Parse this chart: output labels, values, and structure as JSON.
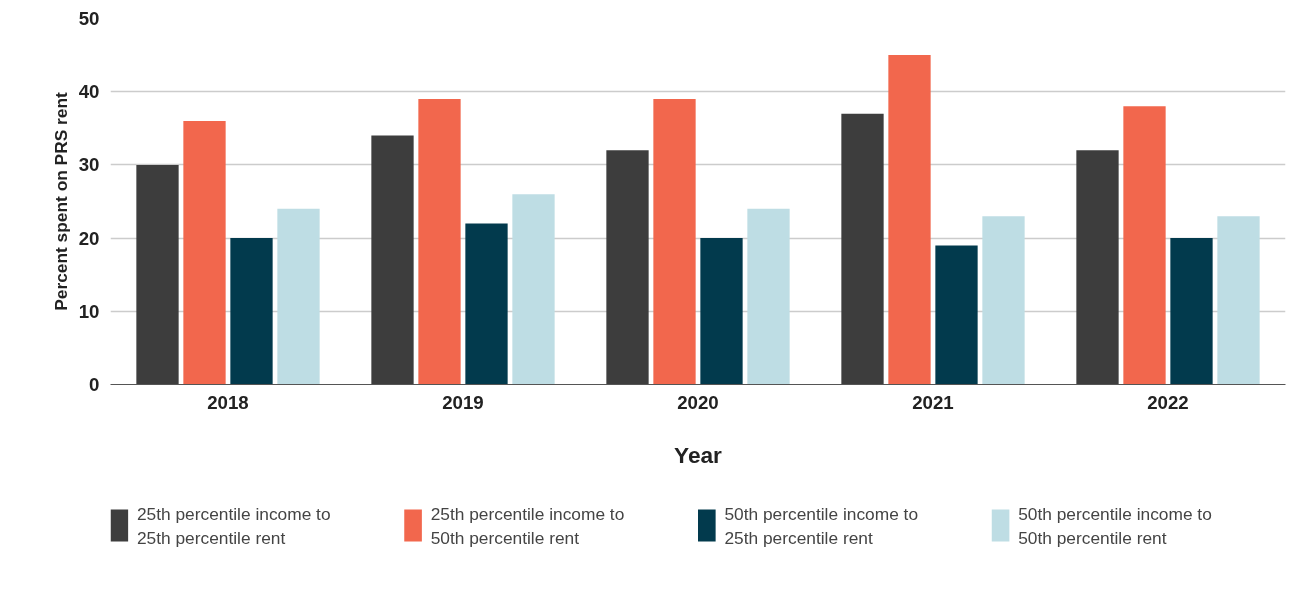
{
  "chart_data": {
    "type": "bar",
    "xlabel": "Year",
    "ylabel": "Percent spent on PRS rent",
    "categories": [
      "2018",
      "2019",
      "2020",
      "2021",
      "2022"
    ],
    "series": [
      {
        "name": "25th percentile income to 25th percentile rent",
        "color": "#3d3d3d",
        "values": [
          30,
          34,
          32,
          37,
          32
        ]
      },
      {
        "name": "25th percentile income to 50th percentile rent",
        "color": "#f2674d",
        "values": [
          36,
          39,
          39,
          45,
          38
        ]
      },
      {
        "name": "50th percentile income to 25th percentile rent",
        "color": "#023a4d",
        "values": [
          20,
          22,
          20,
          19,
          20
        ]
      },
      {
        "name": "50th percentile income to 50th percentile rent",
        "color": "#bedde4",
        "values": [
          24,
          26,
          24,
          23,
          23
        ]
      }
    ],
    "ylim": [
      0,
      50
    ],
    "yticks": [
      0,
      10,
      20,
      30,
      40,
      50
    ],
    "grid": "y",
    "legend": "bottom"
  }
}
